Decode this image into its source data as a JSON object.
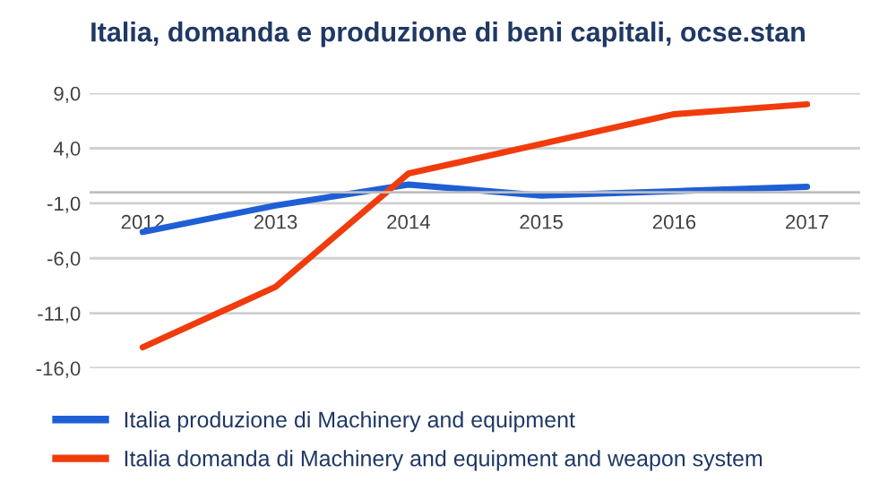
{
  "chart_data": {
    "type": "line",
    "title": "Italia, domanda e produzione di beni capitali, ocse.stan",
    "categories": [
      "2012",
      "2013",
      "2014",
      "2015",
      "2016",
      "2017"
    ],
    "series": [
      {
        "name": "Italia produzione di Machinery and equipment",
        "color": "#1f5fd6",
        "values": [
          -3.6,
          -1.2,
          0.7,
          -0.3,
          0.1,
          0.5
        ]
      },
      {
        "name": "Italia domanda di Machinery and equipment and weapon system",
        "color": "#f03c0c",
        "values": [
          -14.1,
          -8.6,
          1.7,
          4.4,
          7.1,
          8.0
        ]
      }
    ],
    "ylim": [
      -16,
      9
    ],
    "yticks": [
      {
        "value": 9,
        "label": "9,0"
      },
      {
        "value": 4,
        "label": "4,0"
      },
      {
        "value": -1,
        "label": "-1,0"
      },
      {
        "value": -6,
        "label": "-6,0"
      },
      {
        "value": -11,
        "label": "-11,0"
      },
      {
        "value": -16,
        "label": "-16,0"
      }
    ],
    "grid": "y",
    "legend": "bottom"
  }
}
